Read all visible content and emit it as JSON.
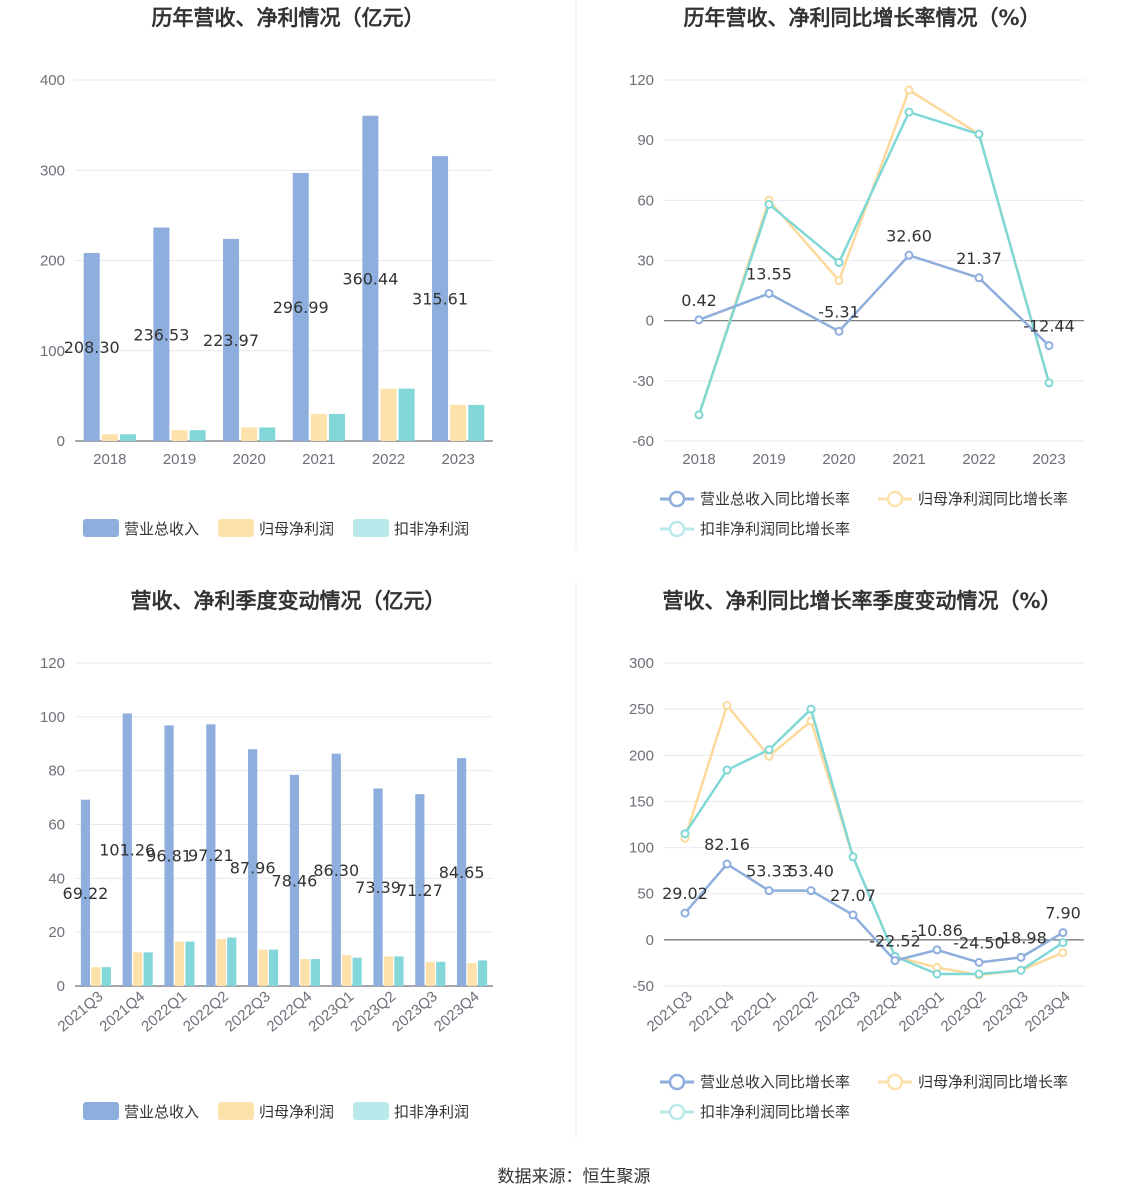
{
  "source_text": "数据来源：恒生聚源",
  "colors": {
    "revenue": "#8eaedd",
    "net_profit": "#fde1aa",
    "deducted_profit": "#84d7d8",
    "line_revenue": "#8eaedd",
    "line_net": "#fdd99c",
    "line_deducted": "#7fd8d6",
    "grid": "#e6e9ef",
    "axis": "#6e7079"
  },
  "chart_data": [
    {
      "type": "bar",
      "title": "历年营收、净利情况（亿元）",
      "categories": [
        "2018",
        "2019",
        "2020",
        "2021",
        "2022",
        "2023"
      ],
      "ylim": [
        0,
        400
      ],
      "yticks": [
        0,
        100,
        200,
        300,
        400
      ],
      "series": [
        {
          "name": "营业总收入",
          "values": [
            208.3,
            236.53,
            223.97,
            296.99,
            360.44,
            315.61
          ],
          "labels": [
            "208.30",
            "236.53",
            "223.97",
            "296.99",
            "360.44",
            "315.61"
          ]
        },
        {
          "name": "归母净利润",
          "values": [
            7.5,
            12.0,
            15.0,
            30.0,
            58.0,
            40.0
          ]
        },
        {
          "name": "扣非净利润",
          "values": [
            7.5,
            12.0,
            15.0,
            30.0,
            58.0,
            40.0
          ]
        }
      ]
    },
    {
      "type": "line",
      "title": "历年营收、净利同比增长率情况（%）",
      "categories": [
        "2018",
        "2019",
        "2020",
        "2021",
        "2022",
        "2023"
      ],
      "ylim": [
        -60,
        120
      ],
      "yticks": [
        -60,
        -30,
        0,
        30,
        60,
        90,
        120
      ],
      "series": [
        {
          "name": "营业总收入同比增长率",
          "values": [
            0.42,
            13.55,
            -5.31,
            32.6,
            21.37,
            -12.44
          ],
          "labels": [
            "0.42",
            "13.55",
            "-5.31",
            "32.60",
            "21.37",
            "-12.44"
          ]
        },
        {
          "name": "归母净利润同比增长率",
          "values": [
            -47,
            60,
            20,
            115,
            93,
            -31
          ]
        },
        {
          "name": "扣非净利润同比增长率",
          "values": [
            -47,
            58,
            29,
            104,
            93,
            -31
          ]
        }
      ]
    },
    {
      "type": "bar",
      "title": "营收、净利季度变动情况（亿元）",
      "categories": [
        "2021Q3",
        "2021Q4",
        "2022Q1",
        "2022Q2",
        "2022Q3",
        "2022Q4",
        "2023Q1",
        "2023Q2",
        "2023Q3",
        "2023Q4"
      ],
      "ylim": [
        0,
        120
      ],
      "yticks": [
        0,
        20,
        40,
        60,
        80,
        100,
        120
      ],
      "series": [
        {
          "name": "营业总收入",
          "values": [
            69.22,
            101.26,
            96.81,
            97.21,
            87.96,
            78.46,
            86.3,
            73.39,
            71.27,
            84.65
          ],
          "labels": [
            "69.22",
            "101.26",
            "96.81",
            "97.21",
            "87.96",
            "78.46",
            "86.30",
            "73.39",
            "71.27",
            "84.65"
          ]
        },
        {
          "name": "归母净利润",
          "values": [
            7.0,
            12.5,
            16.5,
            17.5,
            13.5,
            10.0,
            11.5,
            11.0,
            9.0,
            8.5
          ]
        },
        {
          "name": "扣非净利润",
          "values": [
            7.0,
            12.5,
            16.5,
            18.0,
            13.5,
            10.0,
            10.5,
            11.0,
            9.0,
            9.5
          ]
        }
      ]
    },
    {
      "type": "line",
      "title": "营收、净利同比增长率季度变动情况（%）",
      "categories": [
        "2021Q3",
        "2021Q4",
        "2022Q1",
        "2022Q2",
        "2022Q3",
        "2022Q4",
        "2023Q1",
        "2023Q2",
        "2023Q3",
        "2023Q4"
      ],
      "ylim": [
        -50,
        300
      ],
      "yticks": [
        -50,
        0,
        50,
        100,
        150,
        200,
        250,
        300
      ],
      "series": [
        {
          "name": "营业总收入同比增长率",
          "values": [
            29.02,
            82.16,
            53.33,
            53.4,
            27.07,
            -22.52,
            -10.86,
            -24.5,
            -18.98,
            7.9
          ],
          "labels": [
            "29.02",
            "82.16",
            "53.33",
            "53.40",
            "27.07",
            "-22.52",
            "-10.86",
            "-24.50",
            "-18.98",
            "7.90"
          ]
        },
        {
          "name": "归母净利润同比增长率",
          "values": [
            110,
            254,
            199,
            237,
            90,
            -18,
            -30,
            -38,
            -33,
            -14
          ]
        },
        {
          "name": "扣非净利润同比增长率",
          "values": [
            115,
            184,
            206,
            250,
            90,
            -18,
            -37,
            -37,
            -33,
            -3
          ]
        }
      ]
    }
  ]
}
